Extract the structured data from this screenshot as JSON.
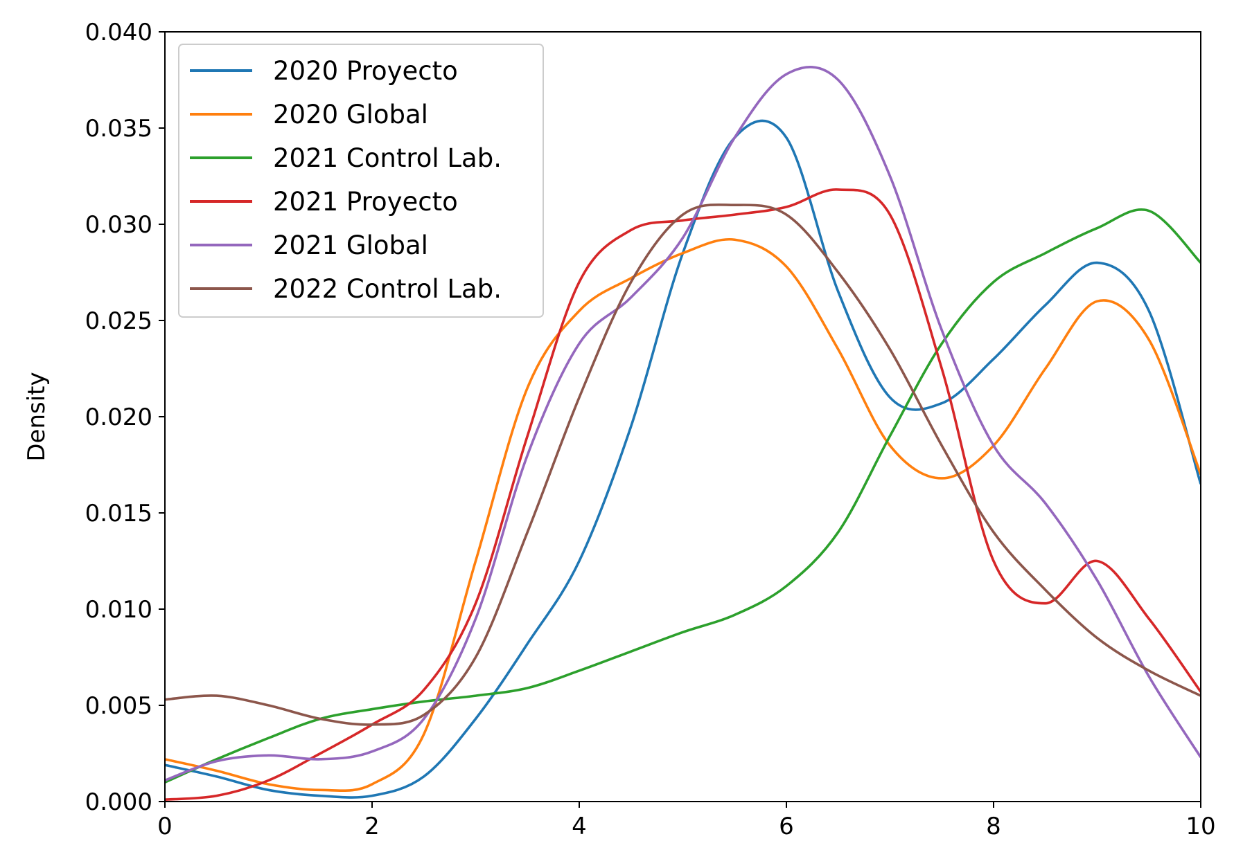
{
  "chart_data": {
    "type": "line",
    "title": "",
    "xlabel": "",
    "ylabel": "Density",
    "xlim": [
      0,
      10
    ],
    "ylim": [
      0,
      0.04
    ],
    "x_ticks": [
      "0",
      "2",
      "4",
      "6",
      "8",
      "10"
    ],
    "y_ticks": [
      "0.000",
      "0.005",
      "0.010",
      "0.015",
      "0.020",
      "0.025",
      "0.030",
      "0.035",
      "0.040"
    ],
    "grid": false,
    "legend_position": "top-left",
    "x": [
      0,
      0.5,
      1,
      1.5,
      2,
      2.5,
      3,
      3.5,
      4,
      4.5,
      5,
      5.5,
      6,
      6.5,
      7,
      7.5,
      8,
      8.5,
      9,
      9.5,
      10
    ],
    "series": [
      {
        "name": "2020 Proyecto",
        "color": "#1f77b4",
        "values": [
          0.0019,
          0.0013,
          0.0006,
          0.0003,
          0.0003,
          0.0013,
          0.0043,
          0.0082,
          0.0125,
          0.0195,
          0.0285,
          0.0345,
          0.0345,
          0.0265,
          0.021,
          0.0207,
          0.023,
          0.0258,
          0.028,
          0.0255,
          0.0165
        ]
      },
      {
        "name": "2020 Global",
        "color": "#ff7f0e",
        "values": [
          0.0022,
          0.0016,
          0.0009,
          0.0006,
          0.0009,
          0.0035,
          0.0125,
          0.0215,
          0.0255,
          0.0272,
          0.0285,
          0.0292,
          0.0278,
          0.0235,
          0.0185,
          0.0168,
          0.0185,
          0.0225,
          0.026,
          0.024,
          0.017
        ]
      },
      {
        "name": "2021 Control Lab.",
        "color": "#2ca02c",
        "values": [
          0.001,
          0.0022,
          0.0033,
          0.0043,
          0.0048,
          0.0052,
          0.0055,
          0.0059,
          0.0068,
          0.0078,
          0.0088,
          0.0097,
          0.0112,
          0.014,
          0.019,
          0.0238,
          0.027,
          0.0285,
          0.0298,
          0.0307,
          0.028
        ]
      },
      {
        "name": "2021 Proyecto",
        "color": "#d62728",
        "values": [
          0.0001,
          0.0003,
          0.0011,
          0.0025,
          0.004,
          0.0058,
          0.0103,
          0.019,
          0.027,
          0.0297,
          0.0302,
          0.0305,
          0.0309,
          0.0318,
          0.0305,
          0.0225,
          0.0125,
          0.0103,
          0.0125,
          0.0095,
          0.0057
        ]
      },
      {
        "name": "2021 Global",
        "color": "#9467bd",
        "values": [
          0.0011,
          0.0021,
          0.0024,
          0.0022,
          0.0026,
          0.0043,
          0.0095,
          0.018,
          0.0238,
          0.0262,
          0.0293,
          0.0345,
          0.0378,
          0.0375,
          0.0325,
          0.0245,
          0.0185,
          0.0155,
          0.0115,
          0.0065,
          0.0023
        ]
      },
      {
        "name": "2022 Control Lab.",
        "color": "#8c564b",
        "values": [
          0.0053,
          0.0055,
          0.005,
          0.0043,
          0.004,
          0.0045,
          0.0075,
          0.014,
          0.021,
          0.027,
          0.0305,
          0.031,
          0.0305,
          0.0275,
          0.0235,
          0.0185,
          0.014,
          0.011,
          0.0085,
          0.0068,
          0.0055
        ]
      }
    ]
  }
}
